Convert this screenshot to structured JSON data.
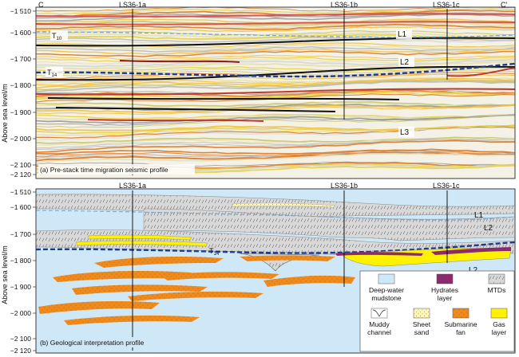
{
  "top_panel": {
    "corner_left": "C",
    "corner_right": "C'",
    "wells": [
      "LS36-1a",
      "LS36-1b",
      "LS36-1c"
    ],
    "y_ticks": [
      "−1 510",
      "−1 600",
      "−1 700",
      "−1 800",
      "−1 900",
      "−2 000",
      "−2 100",
      "−2 120"
    ],
    "horizons": {
      "t10": "T",
      "t10_sub": "10",
      "t14": "T",
      "t14_sub": "14"
    },
    "layers": {
      "l1": "L1",
      "l2": "L2",
      "l3": "L3"
    },
    "caption": "(a) Pre-stack time migration seismic profile"
  },
  "bottom_panel": {
    "wells": [
      "LS36-1a",
      "LS36-1b",
      "LS36-1c"
    ],
    "y_ticks": [
      "−1 510",
      "−1 600",
      "−1 700",
      "−1 800",
      "−1 900",
      "−2 000",
      "−2 100",
      "−2 120"
    ],
    "horizons": {
      "t14": "T",
      "t14_sub": "14"
    },
    "layers": {
      "l1": "L1",
      "l2a": "L2",
      "l2b": "L2"
    },
    "caption": "(b) Geological interpretation profile"
  },
  "y_axis_label": "Above sea level/m",
  "legend": [
    {
      "label1": "Deep-water",
      "label2": "mudstone",
      "color": "#cfe8f8"
    },
    {
      "label1": "Hydrates",
      "label2": "layer",
      "color": "#8c2a6e"
    },
    {
      "label1": "MTDs",
      "label2": "",
      "color": "#d6d6d6"
    },
    {
      "label1": "Muddy",
      "label2": "channel",
      "color": "#ffffff"
    },
    {
      "label1": "Sheet",
      "label2": "sand",
      "color": "#fff7c0"
    },
    {
      "label1": "Submarine",
      "label2": "fan",
      "color": "#ef8a1c"
    },
    {
      "label1": "Gas",
      "label2": "layer",
      "color": "#fff200"
    }
  ]
}
